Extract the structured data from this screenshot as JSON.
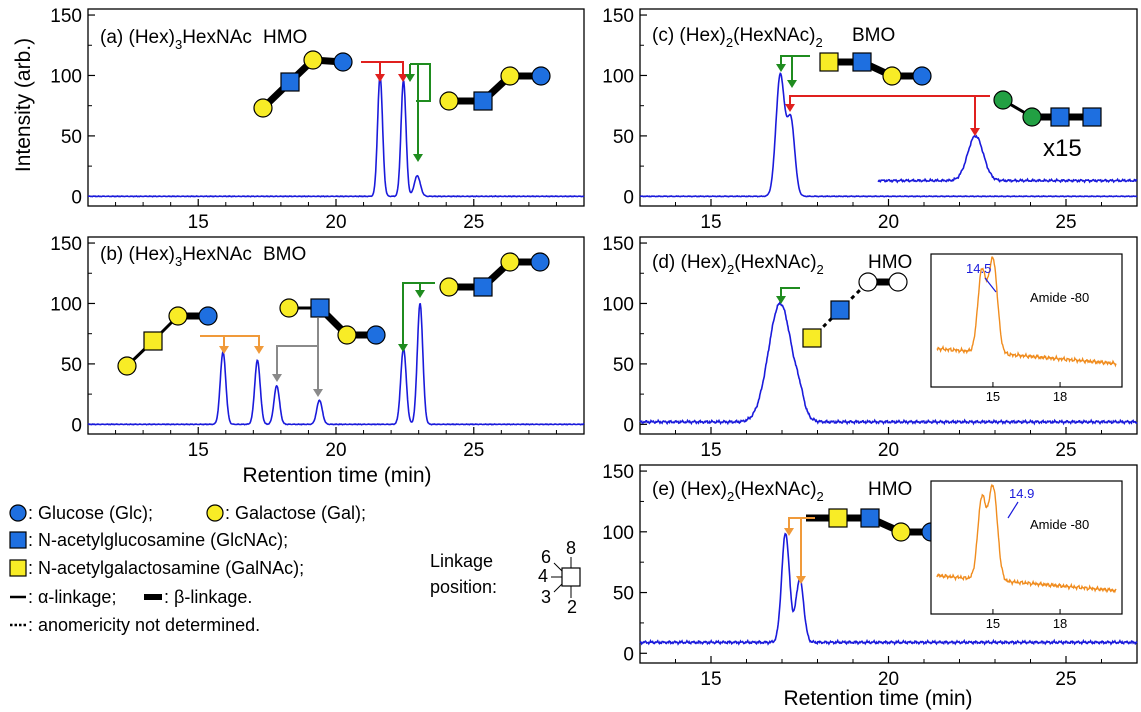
{
  "colors": {
    "trace": "#1a1adb",
    "inset_trace": "#f08c1e",
    "glucose": "#1e6fe0",
    "galactose": "#f8ec26",
    "glcnac": "#1e6fe0",
    "galnac": "#f8ec26",
    "arrow_red": "#e0201e",
    "arrow_green": "#1f8c1f",
    "arrow_orange": "#f09a3a",
    "arrow_gray": "#8a8a8a",
    "fucose_green": "#22a043"
  },
  "y_axis_title": "Intensity (arb.)",
  "legend": {
    "glucose": ": Glucose (Glc);",
    "galactose": ": Galactose (Gal);",
    "glcnac": ": N-acetylglucosamine (GlcNAc);",
    "galnac": ": N-acetylgalactosamine (GalNAc);",
    "alpha": ": α-linkage;",
    "beta": ": β-linkage.",
    "anomer": ": anomericity not determined.",
    "linkage_line1": "Linkage",
    "linkage_line2": "position:",
    "pos_6": "6",
    "pos_8": "8",
    "pos_4": "4",
    "pos_3": "3",
    "pos_2": "2"
  },
  "chart_data": [
    {
      "id": "a",
      "type": "line",
      "title_prefix": "(a) (Hex)",
      "title_sub1": "3",
      "title_mid": "HexNAc",
      "title_sub2": "",
      "title_tag": "HMO",
      "xlim": [
        11,
        29
      ],
      "ylim": [
        -8,
        155
      ],
      "xticks": [
        15,
        20,
        25
      ],
      "yticks": [
        0,
        50,
        100,
        150
      ],
      "xlabel": "",
      "ylabel": "Intensity (arb.)",
      "baseline": 0,
      "peaks": [
        [
          21.6,
          100,
          0.09
        ],
        [
          22.45,
          96,
          0.09
        ],
        [
          22.95,
          17,
          0.11
        ]
      ],
      "annotations": [
        {
          "type": "arrow",
          "peak_rt": 21.6
        },
        {
          "type": "arrow",
          "peak_rt": 22.45
        },
        {
          "type": "arrow",
          "peak_rt": 22.95
        }
      ]
    },
    {
      "id": "b",
      "type": "line",
      "title_prefix": "(b) (Hex)",
      "title_sub1": "3",
      "title_mid": "HexNAc",
      "title_sub2": "",
      "title_tag": "BMO",
      "xlim": [
        11,
        29
      ],
      "ylim": [
        -8,
        155
      ],
      "xticks": [
        15,
        20,
        25
      ],
      "yticks": [
        0,
        50,
        100,
        150
      ],
      "xlabel": "Retention time (min)",
      "ylabel": "",
      "baseline": 0,
      "peaks": [
        [
          15.9,
          60,
          0.1
        ],
        [
          17.15,
          53,
          0.1
        ],
        [
          17.85,
          32,
          0.1
        ],
        [
          19.4,
          20,
          0.1
        ],
        [
          22.45,
          63,
          0.1
        ],
        [
          23.05,
          100,
          0.1
        ]
      ],
      "annotations": [
        {
          "type": "arrow",
          "peak_rt": 15.9
        },
        {
          "type": "arrow",
          "peak_rt": 17.15
        },
        {
          "type": "arrow",
          "peak_rt": 17.85
        },
        {
          "type": "arrow",
          "peak_rt": 19.4
        },
        {
          "type": "arrow",
          "peak_rt": 22.45
        },
        {
          "type": "arrow",
          "peak_rt": 23.05
        }
      ]
    },
    {
      "id": "c",
      "type": "line",
      "title_prefix": "(c) (Hex)",
      "title_sub1": "2",
      "title_mid": "(HexNAc)",
      "title_sub2": "2",
      "title_tag": "BMO",
      "xlim": [
        13,
        27
      ],
      "ylim": [
        -8,
        155
      ],
      "xticks": [
        15,
        20,
        25
      ],
      "yticks": [
        0,
        50,
        100,
        150
      ],
      "xlabel": "",
      "ylabel": "",
      "baseline": 0,
      "peaks": [
        [
          16.95,
          100,
          0.12
        ],
        [
          17.25,
          62,
          0.11
        ]
      ],
      "scaled_trace": {
        "label": "x15",
        "x_start": 19.7,
        "baseline": 13,
        "peaks": [
          [
            22.45,
            37,
            0.22
          ]
        ]
      },
      "annotations": [
        {
          "type": "arrow",
          "peak_rt": 16.95
        },
        {
          "type": "arrow",
          "peak_rt": 17.25
        },
        {
          "type": "arrow",
          "peak_rt": 22.45
        }
      ]
    },
    {
      "id": "d",
      "type": "line",
      "title_prefix": "(d) (Hex)",
      "title_sub1": "2",
      "title_mid": "(HexNAc)",
      "title_sub2": "2",
      "title_tag": "HMO",
      "xlim": [
        13,
        27
      ],
      "ylim": [
        -8,
        155
      ],
      "xticks": [
        15,
        20,
        25
      ],
      "yticks": [
        0,
        50,
        100,
        150
      ],
      "xlabel": "",
      "ylabel": "",
      "baseline": 2,
      "peaks": [
        [
          16.95,
          98,
          0.33
        ],
        [
          17.5,
          10,
          0.12
        ]
      ],
      "annotations": [
        {
          "type": "arrow",
          "peak_rt": 16.95
        }
      ],
      "inset": {
        "label": "Amide -80",
        "peak_label": "14.5",
        "xlim": [
          12.5,
          20.5
        ],
        "xticks": [
          15,
          18
        ],
        "peaks": [
          [
            14.5,
            68,
            0.18
          ],
          [
            15.0,
            80,
            0.2
          ]
        ]
      }
    },
    {
      "id": "e",
      "type": "line",
      "title_prefix": "(e) (Hex)",
      "title_sub1": "2",
      "title_mid": "(HexNAc)",
      "title_sub2": "2",
      "title_tag": "HMO",
      "xlim": [
        13,
        27
      ],
      "ylim": [
        -8,
        155
      ],
      "xticks": [
        15,
        20,
        25
      ],
      "yticks": [
        0,
        50,
        100,
        150
      ],
      "xlabel": "Retention time (min)",
      "ylabel": "",
      "baseline": 9,
      "peaks": [
        [
          17.1,
          90,
          0.11
        ],
        [
          17.5,
          52,
          0.11
        ]
      ],
      "annotations": [
        {
          "type": "arrow",
          "peak_rt": 17.1
        },
        {
          "type": "arrow",
          "peak_rt": 17.5
        }
      ],
      "inset": {
        "label": "Amide -80",
        "peak_label": "14.9",
        "xlim": [
          12.5,
          20.5
        ],
        "xticks": [
          15,
          18
        ],
        "peaks": [
          [
            14.5,
            68,
            0.18
          ],
          [
            15.0,
            80,
            0.2
          ]
        ]
      }
    }
  ]
}
